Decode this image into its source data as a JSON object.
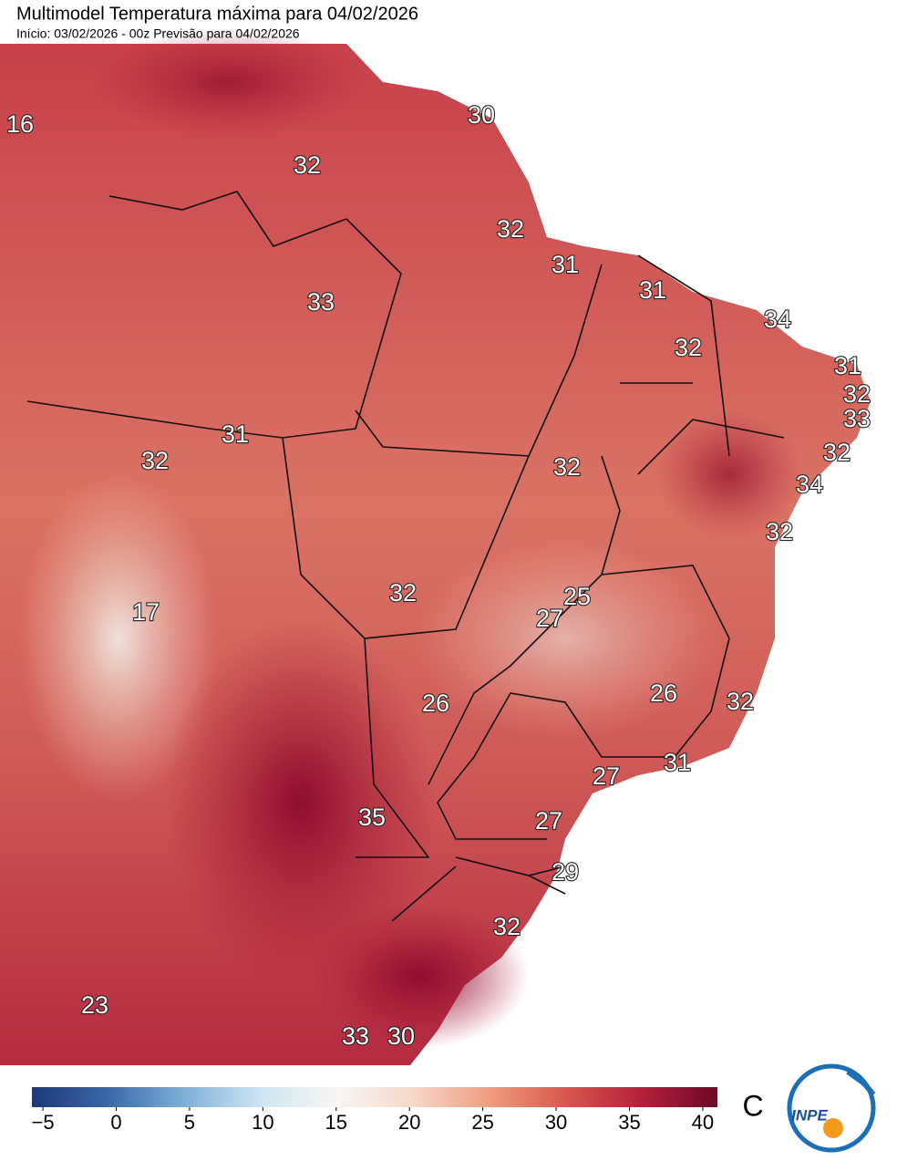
{
  "header": {
    "title": "Multimodel Temperatura máxima para 04/02/2026",
    "subtitle": "Início: 03/02/2026 - 00z  Previsão para 04/02/2026"
  },
  "map": {
    "labels": [
      16,
      30,
      32,
      32,
      31,
      31,
      33,
      34,
      32,
      31,
      32,
      33,
      31,
      32,
      32,
      32,
      34,
      32,
      25,
      32,
      17,
      27,
      26,
      26,
      32,
      31,
      27,
      35,
      27,
      29,
      32,
      23,
      33,
      30
    ]
  },
  "colorbar": {
    "range": [
      -5.75,
      41
    ],
    "unit": "C",
    "colors": [
      "#1d3777",
      "#3a68aa",
      "#7fb0d8",
      "#cfe4f2",
      "#f7f6f4",
      "#f6d8c6",
      "#ee9e80",
      "#d9574f",
      "#b51f3c",
      "#6b0a26"
    ],
    "ticks": [
      {
        "value": -5,
        "label": "−5"
      },
      0,
      5,
      10,
      15,
      20,
      25,
      30,
      35,
      40
    ]
  },
  "logo": {
    "text": "INPE"
  }
}
